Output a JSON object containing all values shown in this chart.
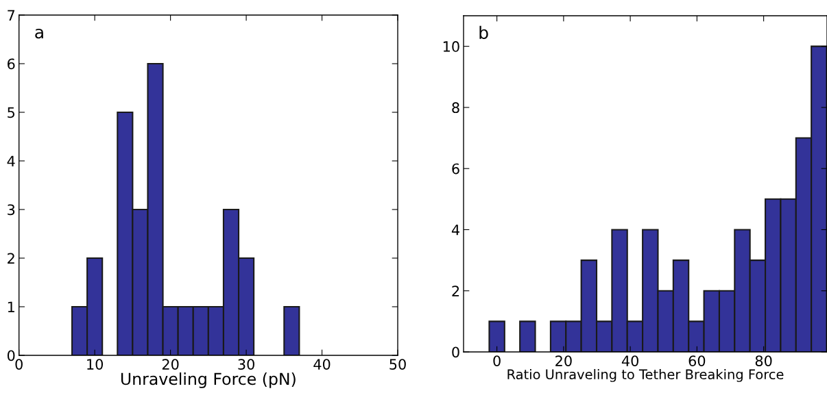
{
  "chart_data": [
    {
      "type": "histogram",
      "xlabel": "Unraveling Force (pN)",
      "annotations": [
        "a"
      ],
      "color": "#333399",
      "bins": [
        1,
        3,
        5,
        7,
        9,
        11,
        13,
        15,
        17,
        19,
        21,
        23,
        25,
        27,
        29,
        31,
        33,
        35,
        37
      ],
      "values": [
        0,
        0,
        0,
        1,
        2,
        0,
        5,
        3,
        6,
        1,
        1,
        1,
        1,
        3,
        2,
        0,
        0,
        1
      ],
      "xlim": [
        0,
        50
      ],
      "xticks": [
        0,
        10,
        20,
        30,
        40,
        50
      ],
      "ylim": [
        0,
        7
      ],
      "yticks": [
        0,
        1,
        2,
        3,
        4,
        5,
        6,
        7
      ],
      "grid": false
    },
    {
      "type": "histogram",
      "xlabel": "Ratio Unraveling to Tether Breaking Force",
      "annotations": [
        "b"
      ],
      "color": "#333399",
      "bins": [
        -2.3,
        2.3,
        6.9,
        11.5,
        16.1,
        20.7,
        25.3,
        29.9,
        34.5,
        39.1,
        43.7,
        48.3,
        52.9,
        57.5,
        62.1,
        66.7,
        71.3,
        75.9,
        80.5,
        85.1,
        89.7,
        94.3,
        98.9
      ],
      "values": [
        1,
        0,
        1,
        0,
        1,
        1,
        3,
        1,
        4,
        1,
        4,
        2,
        3,
        1,
        2,
        2,
        4,
        3,
        5,
        5,
        7,
        10
      ],
      "xlim": [
        -10,
        99
      ],
      "xticks": [
        0,
        20,
        40,
        60,
        80
      ],
      "ylim": [
        0,
        11
      ],
      "yticks": [
        0,
        2,
        4,
        6,
        8,
        10
      ],
      "grid": false
    }
  ]
}
